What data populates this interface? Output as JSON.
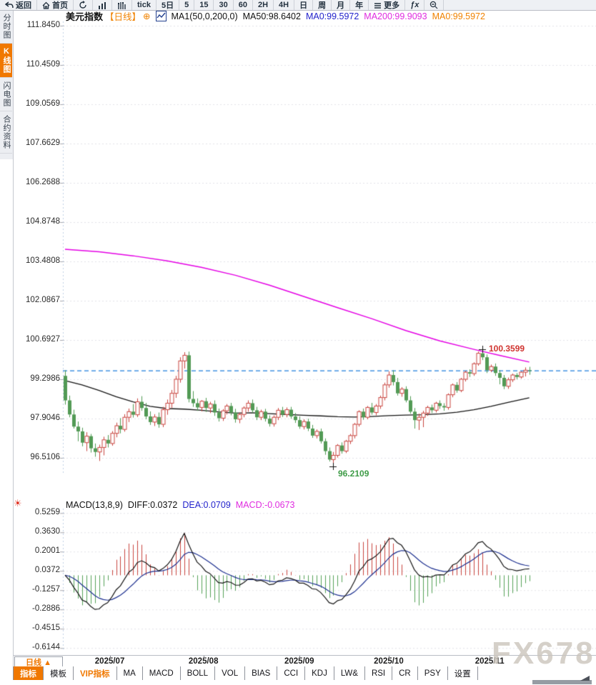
{
  "toolbar": {
    "items": [
      {
        "icon": "back-icon",
        "label": "返回"
      },
      {
        "icon": "home-icon",
        "label": "首页"
      },
      {
        "icon": "refresh-icon",
        "label": ""
      },
      {
        "icon": "bar-chart-icon",
        "label": ""
      },
      {
        "icon": "volume-profile-icon",
        "label": ""
      },
      {
        "icon": "",
        "label": "tick"
      },
      {
        "icon": "",
        "label": "5日"
      },
      {
        "icon": "",
        "label": "5"
      },
      {
        "icon": "",
        "label": "15"
      },
      {
        "icon": "",
        "label": "30"
      },
      {
        "icon": "",
        "label": "60"
      },
      {
        "icon": "",
        "label": "2H"
      },
      {
        "icon": "",
        "label": "4H"
      },
      {
        "icon": "",
        "label": "日"
      },
      {
        "icon": "",
        "label": "周"
      },
      {
        "icon": "",
        "label": "月"
      },
      {
        "icon": "",
        "label": "年"
      },
      {
        "icon": "menu-icon",
        "label": "更多"
      },
      {
        "icon": "fx-icon",
        "label": "ƒx"
      },
      {
        "icon": "zoom-out-icon",
        "label": ""
      }
    ]
  },
  "sidebar": {
    "tabs": [
      {
        "label": "分时图",
        "active": false
      },
      {
        "label": "K线图",
        "active": true
      },
      {
        "label": "闪电图",
        "active": false
      },
      {
        "label": "合约资料",
        "active": false
      }
    ]
  },
  "legend": {
    "symbol": "美元指数",
    "period": "【日线】",
    "plus": "⊕",
    "ma_settings": "MA1(50,0,200,0)",
    "ma50": "MA50:98.6402",
    "ma0_blue": "MA0:99.5972",
    "ma200": "MA200:99.9093",
    "ma0_orange": "MA0:99.5972"
  },
  "macd_legend": {
    "title": "MACD(13,8,9)",
    "diff": "DIFF:0.0372",
    "dea": "DEA:0.0709",
    "macd": "MACD:-0.0673"
  },
  "bottom": {
    "period_button": "日线 ▲",
    "tabs": [
      {
        "label": "指标",
        "state": "active"
      },
      {
        "label": "模板",
        "state": ""
      },
      {
        "label": "VIP指标",
        "state": "vip"
      },
      {
        "label": "MA",
        "state": ""
      },
      {
        "label": "MACD",
        "state": ""
      },
      {
        "label": "BOLL",
        "state": ""
      },
      {
        "label": "VOL",
        "state": ""
      },
      {
        "label": "BIAS",
        "state": ""
      },
      {
        "label": "CCI",
        "state": ""
      },
      {
        "label": "KDJ",
        "state": ""
      },
      {
        "label": "LW&",
        "state": ""
      },
      {
        "label": "RSI",
        "state": ""
      },
      {
        "label": "CR",
        "state": ""
      },
      {
        "label": "PSY",
        "state": ""
      },
      {
        "label": "设置",
        "state": ""
      }
    ],
    "watermark": "FX678"
  },
  "chart_data": {
    "type": "candlestick+macd",
    "title": "美元指数 日线 (US Dollar Index, daily)",
    "main_axis_ticks": [
      "111.8450",
      "110.4509",
      "109.0569",
      "107.6629",
      "106.2688",
      "104.8748",
      "103.4808",
      "102.0867",
      "100.6927",
      "99.2986",
      "97.9046",
      "96.5106"
    ],
    "macd_axis_ticks": [
      "0.5259",
      "0.3630",
      "0.2001",
      "0.0372",
      "-0.1257",
      "-0.2886",
      "-0.4515",
      "-0.6144"
    ],
    "months": [
      {
        "label": "2025/07",
        "i": 10.5
      },
      {
        "label": "2025/08",
        "i": 32.5
      },
      {
        "label": "2025/09",
        "i": 55
      },
      {
        "label": "2025/10",
        "i": 76
      },
      {
        "label": "2025/11",
        "i": 99.7
      }
    ],
    "price_line": 99.5972,
    "high": {
      "index": 98,
      "value": 100.3599,
      "label": "100.3599"
    },
    "low": {
      "index": 63,
      "value": 96.2109,
      "label": "96.2109"
    },
    "macd_params": {
      "fast": 8,
      "slow": 13,
      "signal": 9
    },
    "colors": {
      "up": "#c9453f",
      "down": "#4f9b52",
      "down_fill": "#529a55",
      "ma50": "#141414",
      "ma200": "#e400e4",
      "diff": "#161616",
      "dea": "#1c2f8f",
      "price_line": "#1f7fdd",
      "hist_up": "#c9453f",
      "hist_down": "#54a157",
      "grid": "#e2e2e8"
    },
    "candles": [
      [
        99.42,
        99.62,
        98.4,
        98.55
      ],
      [
        98.55,
        98.72,
        97.95,
        98.05
      ],
      [
        98.05,
        98.22,
        97.55,
        97.62
      ],
      [
        97.62,
        97.8,
        97.1,
        97.45
      ],
      [
        97.45,
        97.58,
        96.92,
        97.05
      ],
      [
        97.05,
        97.42,
        96.75,
        97.28
      ],
      [
        97.28,
        97.36,
        96.7,
        96.85
      ],
      [
        96.85,
        97.02,
        96.55,
        96.72
      ],
      [
        96.72,
        96.98,
        96.4,
        96.88
      ],
      [
        96.88,
        97.26,
        96.6,
        97.15
      ],
      [
        97.15,
        97.32,
        96.88,
        97.02
      ],
      [
        97.02,
        97.46,
        96.94,
        97.38
      ],
      [
        97.38,
        97.76,
        97.24,
        97.65
      ],
      [
        97.65,
        97.92,
        97.38,
        97.52
      ],
      [
        97.52,
        98.06,
        97.44,
        97.95
      ],
      [
        97.95,
        98.26,
        97.78,
        98.15
      ],
      [
        98.15,
        98.42,
        97.94,
        98.04
      ],
      [
        98.04,
        98.62,
        97.96,
        98.5
      ],
      [
        98.5,
        98.7,
        98.18,
        98.28
      ],
      [
        98.28,
        98.46,
        97.88,
        97.98
      ],
      [
        97.98,
        98.16,
        97.68,
        97.78
      ],
      [
        97.78,
        98.06,
        97.64,
        97.96
      ],
      [
        97.96,
        98.12,
        97.58,
        97.7
      ],
      [
        97.7,
        98.32,
        97.6,
        98.22
      ],
      [
        98.22,
        98.58,
        98.04,
        98.45
      ],
      [
        98.45,
        98.92,
        98.28,
        98.8
      ],
      [
        98.8,
        99.42,
        98.64,
        99.3
      ],
      [
        99.3,
        100.08,
        99.18,
        99.95
      ],
      [
        99.95,
        100.26,
        99.68,
        100.15
      ],
      [
        100.15,
        100.28,
        98.48,
        98.6
      ],
      [
        98.6,
        98.88,
        98.32,
        98.45
      ],
      [
        98.45,
        98.62,
        98.18,
        98.3
      ],
      [
        98.3,
        98.56,
        98.16,
        98.52
      ],
      [
        98.52,
        98.64,
        98.14,
        98.28
      ],
      [
        98.28,
        98.5,
        98.1,
        98.42
      ],
      [
        98.42,
        98.55,
        98.0,
        98.12
      ],
      [
        98.12,
        98.26,
        97.8,
        97.92
      ],
      [
        97.92,
        98.24,
        97.82,
        98.18
      ],
      [
        98.18,
        98.42,
        98.05,
        98.35
      ],
      [
        98.35,
        98.46,
        98.02,
        98.12
      ],
      [
        98.12,
        98.25,
        97.76,
        97.88
      ],
      [
        97.88,
        98.12,
        97.74,
        98.05
      ],
      [
        98.05,
        98.34,
        97.95,
        98.28
      ],
      [
        98.28,
        98.55,
        98.15,
        98.45
      ],
      [
        98.45,
        98.58,
        98.1,
        98.2
      ],
      [
        98.2,
        98.32,
        97.85,
        97.95
      ],
      [
        97.95,
        98.22,
        97.85,
        98.15
      ],
      [
        98.15,
        98.25,
        97.8,
        97.9
      ],
      [
        97.9,
        98.02,
        97.62,
        97.72
      ],
      [
        97.72,
        98.02,
        97.62,
        97.95
      ],
      [
        97.95,
        98.28,
        97.85,
        98.2
      ],
      [
        98.2,
        98.32,
        97.96,
        98.05
      ],
      [
        98.05,
        98.3,
        97.95,
        98.22
      ],
      [
        98.22,
        98.32,
        97.9,
        97.98
      ],
      [
        97.98,
        98.1,
        97.75,
        97.85
      ],
      [
        97.85,
        97.98,
        97.54,
        97.62
      ],
      [
        97.62,
        97.88,
        97.52,
        97.8
      ],
      [
        97.8,
        97.9,
        97.46,
        97.55
      ],
      [
        97.55,
        97.68,
        97.22,
        97.3
      ],
      [
        97.3,
        97.52,
        97.2,
        97.45
      ],
      [
        97.45,
        97.55,
        97.02,
        97.1
      ],
      [
        97.1,
        97.2,
        96.62,
        96.75
      ],
      [
        96.75,
        96.88,
        96.38,
        96.45
      ],
      [
        96.45,
        96.72,
        96.2109,
        96.6
      ],
      [
        96.6,
        97.0,
        96.52,
        96.95
      ],
      [
        96.95,
        97.06,
        96.66,
        96.75
      ],
      [
        96.75,
        97.15,
        96.68,
        97.1
      ],
      [
        97.1,
        97.36,
        97.0,
        97.3
      ],
      [
        97.3,
        97.75,
        97.2,
        97.7
      ],
      [
        97.7,
        98.2,
        97.62,
        98.15
      ],
      [
        98.15,
        98.26,
        97.86,
        97.95
      ],
      [
        97.95,
        98.35,
        97.88,
        98.3
      ],
      [
        98.3,
        98.46,
        98.04,
        98.12
      ],
      [
        98.12,
        98.42,
        98.02,
        98.35
      ],
      [
        98.35,
        98.72,
        98.25,
        98.65
      ],
      [
        98.65,
        99.18,
        98.55,
        99.1
      ],
      [
        99.1,
        99.58,
        99.0,
        99.45
      ],
      [
        99.45,
        99.62,
        99.08,
        99.2
      ],
      [
        99.2,
        99.35,
        98.72,
        98.8
      ],
      [
        98.8,
        99.02,
        98.68,
        98.95
      ],
      [
        98.95,
        99.05,
        98.48,
        98.55
      ],
      [
        98.55,
        98.7,
        98.08,
        98.15
      ],
      [
        98.15,
        98.28,
        97.55,
        97.85
      ],
      [
        97.85,
        98.08,
        97.5,
        97.95
      ],
      [
        97.95,
        98.18,
        97.6,
        98.1
      ],
      [
        98.1,
        98.36,
        98.0,
        98.3
      ],
      [
        98.3,
        98.4,
        98.1,
        98.2
      ],
      [
        98.2,
        98.5,
        98.12,
        98.45
      ],
      [
        98.45,
        98.55,
        98.25,
        98.35
      ],
      [
        98.35,
        98.45,
        98.18,
        98.3
      ],
      [
        98.3,
        98.8,
        98.22,
        98.75
      ],
      [
        98.75,
        99.15,
        98.66,
        99.1
      ],
      [
        99.1,
        99.2,
        98.82,
        98.9
      ],
      [
        98.9,
        99.35,
        98.84,
        99.3
      ],
      [
        99.3,
        99.6,
        99.22,
        99.55
      ],
      [
        99.55,
        99.65,
        99.38,
        99.5
      ],
      [
        99.5,
        99.9,
        99.42,
        99.85
      ],
      [
        99.85,
        100.28,
        99.78,
        100.22
      ],
      [
        100.22,
        100.3599,
        99.98,
        100.08
      ],
      [
        100.08,
        100.18,
        99.52,
        99.62
      ],
      [
        99.62,
        99.82,
        99.55,
        99.75
      ],
      [
        99.75,
        99.86,
        99.42,
        99.52
      ],
      [
        99.52,
        99.62,
        99.12,
        99.35
      ],
      [
        99.35,
        99.45,
        98.95,
        99.05
      ],
      [
        99.05,
        99.36,
        98.96,
        99.28
      ],
      [
        99.28,
        99.5,
        99.2,
        99.45
      ],
      [
        99.45,
        99.52,
        99.3,
        99.38
      ],
      [
        99.38,
        99.58,
        99.32,
        99.55
      ],
      [
        99.55,
        99.72,
        99.4,
        99.62
      ],
      [
        99.62,
        99.74,
        99.46,
        99.6
      ]
    ],
    "ma50_points": [
      [
        0,
        99.25
      ],
      [
        4,
        99.1
      ],
      [
        8,
        98.9
      ],
      [
        12,
        98.68
      ],
      [
        16,
        98.5
      ],
      [
        20,
        98.34
      ],
      [
        24,
        98.26
      ],
      [
        28,
        98.24
      ],
      [
        32,
        98.2
      ],
      [
        36,
        98.14
      ],
      [
        40,
        98.1
      ],
      [
        44,
        98.11
      ],
      [
        48,
        98.08
      ],
      [
        52,
        98.05
      ],
      [
        56,
        98.02
      ],
      [
        60,
        98.0
      ],
      [
        64,
        97.97
      ],
      [
        68,
        97.96
      ],
      [
        72,
        97.98
      ],
      [
        76,
        98.01
      ],
      [
        80,
        98.03
      ],
      [
        84,
        98.04
      ],
      [
        88,
        98.07
      ],
      [
        92,
        98.13
      ],
      [
        96,
        98.22
      ],
      [
        100,
        98.34
      ],
      [
        104,
        98.48
      ],
      [
        109,
        98.64
      ]
    ],
    "ma200_points": [
      [
        0,
        103.91
      ],
      [
        8,
        103.82
      ],
      [
        16,
        103.68
      ],
      [
        24,
        103.5
      ],
      [
        32,
        103.27
      ],
      [
        40,
        102.99
      ],
      [
        48,
        102.64
      ],
      [
        56,
        102.24
      ],
      [
        64,
        101.84
      ],
      [
        72,
        101.45
      ],
      [
        80,
        101.03
      ],
      [
        88,
        100.66
      ],
      [
        96,
        100.36
      ],
      [
        102,
        100.15
      ],
      [
        109,
        99.91
      ]
    ]
  }
}
